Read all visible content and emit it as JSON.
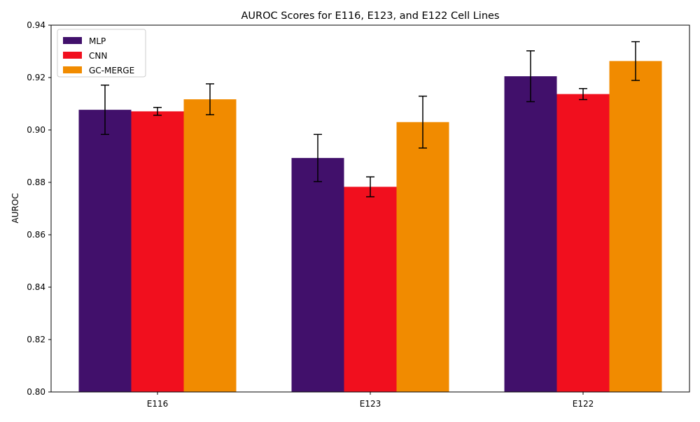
{
  "chart_data": {
    "type": "bar",
    "title": "AUROC Scores for E116, E123, and E122 Cell Lines",
    "xlabel": "",
    "ylabel": "AUROC",
    "categories": [
      "E116",
      "E123",
      "E122"
    ],
    "ylim": [
      0.8,
      0.94
    ],
    "yticks": [
      "0.80",
      "0.82",
      "0.84",
      "0.86",
      "0.88",
      "0.90",
      "0.92",
      "0.94"
    ],
    "series": [
      {
        "name": "MLP",
        "color": "#41106b",
        "values": [
          0.9077,
          0.8893,
          0.9205
        ],
        "errors": [
          0.0094,
          0.009,
          0.0097
        ]
      },
      {
        "name": "CNN",
        "color": "#f10f1e",
        "values": [
          0.9071,
          0.8783,
          0.9137
        ],
        "errors": [
          0.0015,
          0.0038,
          0.0021
        ]
      },
      {
        "name": "GC-MERGE",
        "color": "#f18b00",
        "values": [
          0.9117,
          0.903,
          0.9263
        ],
        "errors": [
          0.0059,
          0.0099,
          0.0074
        ]
      }
    ],
    "legend_position": "top-left",
    "grid": false
  }
}
